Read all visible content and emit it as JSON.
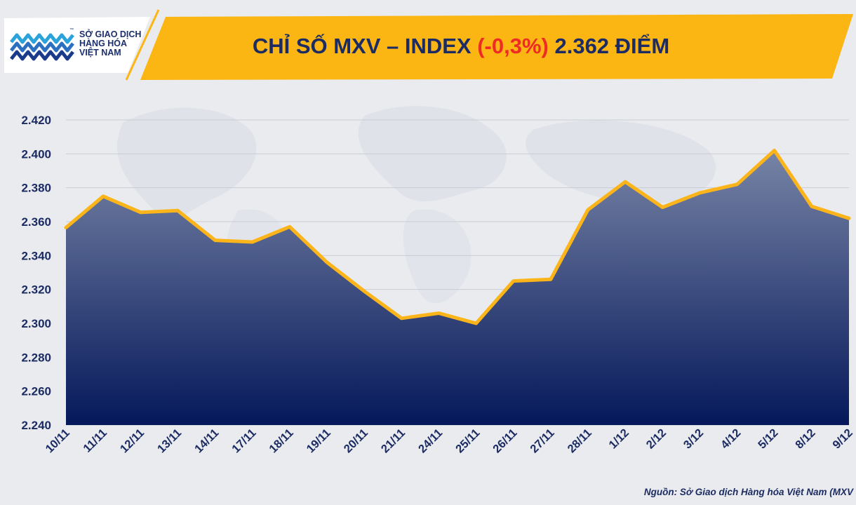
{
  "brand": {
    "line1": "SỞ GIAO DỊCH",
    "line2": "HÀNG HÓA",
    "line3": "VIỆT NAM",
    "tm": "™",
    "logo_icon": "mxv-logo-icon"
  },
  "title": {
    "prefix": "CHỈ SỐ MXV – INDEX ",
    "change": "(-0,3%)",
    "suffix": " 2.362 ĐIỂM"
  },
  "source": "Nguồn: Sở Giao dịch Hàng hóa Việt Nam (MXV",
  "colors": {
    "header_band": "#fcb614",
    "title_text": "#1c2c63",
    "change_text": "#ee2b24",
    "line": "#fbb51a",
    "area_top": "#7784a6",
    "area_bottom": "#05185a",
    "axis_text": "#1c2c63"
  },
  "chart_data": {
    "type": "area",
    "categories": [
      "10/11",
      "11/11",
      "12/11",
      "13/11",
      "14/11",
      "17/11",
      "18/11",
      "19/11",
      "20/11",
      "21/11",
      "24/11",
      "25/11",
      "26/11",
      "27/11",
      "28/11",
      "1/12",
      "2/12",
      "3/12",
      "4/12",
      "5/12",
      "8/12",
      "9/12"
    ],
    "values": [
      2356.5,
      2375,
      2365.5,
      2366.5,
      2349,
      2348,
      2357,
      2336,
      2319,
      2303,
      2306,
      2300,
      2325,
      2326,
      2367,
      2383.5,
      2368.5,
      2377,
      2382,
      2402,
      2369,
      2362
    ],
    "y_ticks": [
      2240,
      2260,
      2280,
      2300,
      2320,
      2340,
      2360,
      2380,
      2400,
      2420
    ],
    "y_tick_labels": [
      "2.240",
      "2.260",
      "2.280",
      "2.300",
      "2.320",
      "2.340",
      "2.360",
      "2.380",
      "2.400",
      "2.420"
    ],
    "ylim": [
      2240,
      2420
    ],
    "grid": true,
    "legend": "none"
  }
}
